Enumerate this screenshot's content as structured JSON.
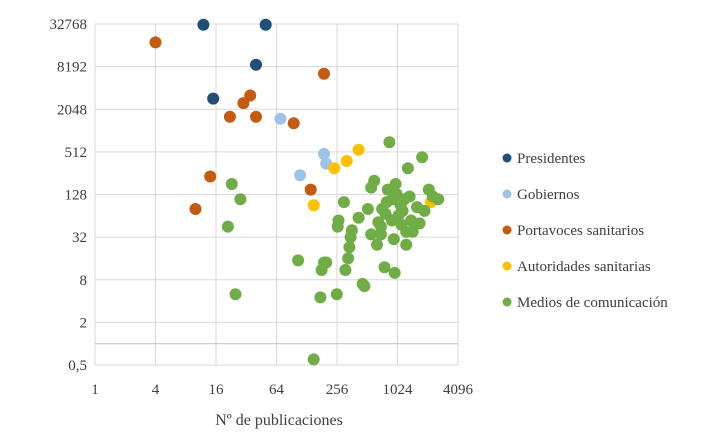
{
  "chart_data": {
    "type": "scatter",
    "title": "",
    "xlabel": "Nº de publicaciones",
    "ylabel": "",
    "x_scale": "log2",
    "y_scale": "log2",
    "xlim": [
      1,
      4096
    ],
    "ylim": [
      0.5,
      32768
    ],
    "x_ticks": [
      {
        "value": 1,
        "label": "1"
      },
      {
        "value": 4,
        "label": "4"
      },
      {
        "value": 16,
        "label": "16"
      },
      {
        "value": 64,
        "label": "64"
      },
      {
        "value": 256,
        "label": "256"
      },
      {
        "value": 1024,
        "label": "1024"
      },
      {
        "value": 4096,
        "label": "4096"
      }
    ],
    "y_ticks": [
      {
        "value": 0.5,
        "label": "0,5"
      },
      {
        "value": 2,
        "label": "2"
      },
      {
        "value": 8,
        "label": "8"
      },
      {
        "value": 32,
        "label": "32"
      },
      {
        "value": 128,
        "label": "128"
      },
      {
        "value": 512,
        "label": "512"
      },
      {
        "value": 2048,
        "label": "2048"
      },
      {
        "value": 8192,
        "label": "8192"
      },
      {
        "value": 32768,
        "label": "32768"
      }
    ],
    "grid": true,
    "legend_position": "right",
    "series": [
      {
        "name": "Presidentes",
        "color": "#1f4e79",
        "points": [
          [
            12,
            32000
          ],
          [
            50,
            32000
          ],
          [
            40,
            8700
          ],
          [
            15,
            2900
          ]
        ]
      },
      {
        "name": "Gobiernos",
        "color": "#9dc3e6",
        "points": [
          [
            70,
            1500
          ],
          [
            110,
            240
          ],
          [
            190,
            480
          ],
          [
            200,
            350
          ]
        ]
      },
      {
        "name": "Portavoces sanitarios",
        "color": "#c55a11",
        "points": [
          [
            4,
            18000
          ],
          [
            10,
            80
          ],
          [
            14,
            230
          ],
          [
            22,
            1600
          ],
          [
            30,
            2500
          ],
          [
            35,
            3200
          ],
          [
            40,
            1600
          ],
          [
            95,
            1300
          ],
          [
            140,
            150
          ],
          [
            190,
            6500
          ]
        ]
      },
      {
        "name": "Autoridades sanitarias",
        "color": "#ffc000",
        "points": [
          [
            150,
            90
          ],
          [
            240,
            300
          ],
          [
            320,
            380
          ],
          [
            420,
            550
          ],
          [
            2200,
            100
          ]
        ]
      },
      {
        "name": "Medios de comunicación",
        "color": "#70ad47",
        "points": [
          [
            21,
            45
          ],
          [
            23,
            180
          ],
          [
            25,
            5
          ],
          [
            28,
            110
          ],
          [
            105,
            15
          ],
          [
            150,
            0.6
          ],
          [
            175,
            4.5
          ],
          [
            180,
            11
          ],
          [
            190,
            14
          ],
          [
            200,
            14
          ],
          [
            255,
            5
          ],
          [
            260,
            45
          ],
          [
            265,
            55
          ],
          [
            300,
            100
          ],
          [
            310,
            11
          ],
          [
            330,
            16
          ],
          [
            340,
            23
          ],
          [
            350,
            32
          ],
          [
            360,
            40
          ],
          [
            420,
            60
          ],
          [
            460,
            7
          ],
          [
            480,
            6.5
          ],
          [
            520,
            80
          ],
          [
            560,
            160
          ],
          [
            600,
            200
          ],
          [
            640,
            25
          ],
          [
            660,
            52
          ],
          [
            700,
            35
          ],
          [
            720,
            80
          ],
          [
            760,
            12
          ],
          [
            780,
            68
          ],
          [
            800,
            100
          ],
          [
            820,
            150
          ],
          [
            850,
            700
          ],
          [
            900,
            55
          ],
          [
            920,
            110
          ],
          [
            940,
            30
          ],
          [
            960,
            10
          ],
          [
            980,
            180
          ],
          [
            1000,
            130
          ],
          [
            1050,
            65
          ],
          [
            1100,
            90
          ],
          [
            1120,
            48
          ],
          [
            1150,
            75
          ],
          [
            1200,
            110
          ],
          [
            1250,
            25
          ],
          [
            1300,
            300
          ],
          [
            1350,
            120
          ],
          [
            1400,
            55
          ],
          [
            1450,
            38
          ],
          [
            1600,
            85
          ],
          [
            1700,
            50
          ],
          [
            1800,
            430
          ],
          [
            1900,
            75
          ],
          [
            2100,
            150
          ],
          [
            2300,
            120
          ],
          [
            2600,
            110
          ],
          [
            700,
            45
          ],
          [
            1250,
            38
          ],
          [
            560,
            35
          ]
        ]
      }
    ]
  }
}
